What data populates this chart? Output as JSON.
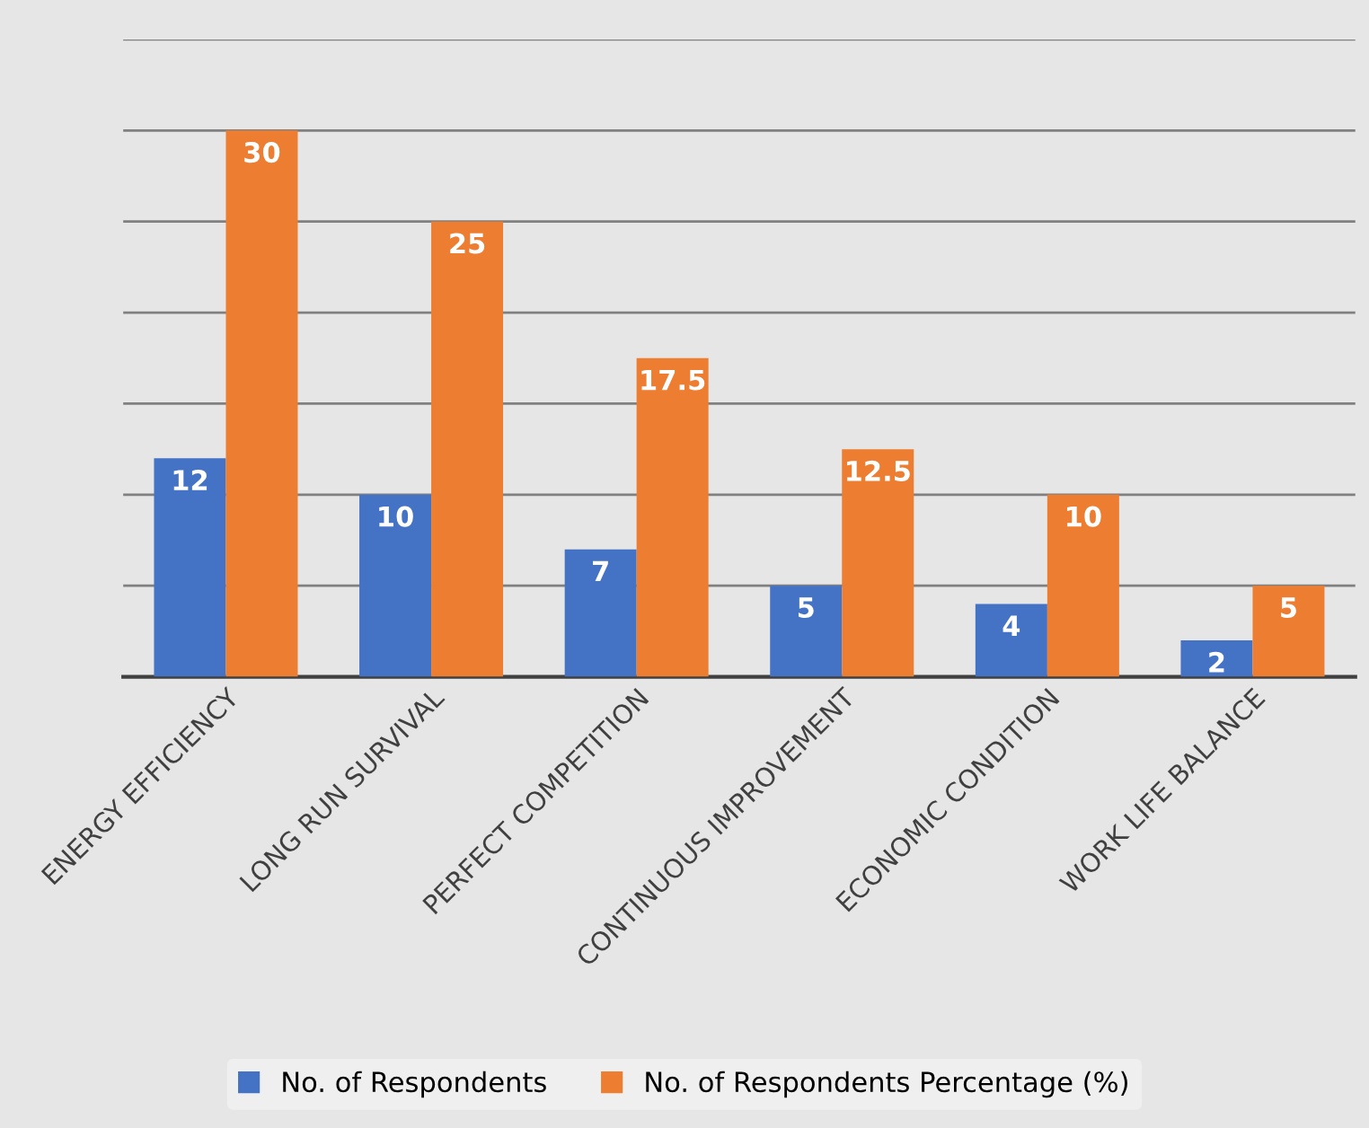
{
  "chart_data": {
    "type": "bar",
    "categories": [
      "ENERGY EFFICIENCY",
      "LONG RUN SURVIVAL",
      "PERFECT COMPETITION",
      "CONTINUOUS IMPROVEMENT",
      "ECONOMIC CONDITION",
      "WORK LIFE BALANCE"
    ],
    "series": [
      {
        "name": "No. of Respondents",
        "color": "#4472c4",
        "values": [
          12,
          10,
          7,
          5,
          4,
          2
        ]
      },
      {
        "name": "No. of Respondents Percentage (%)",
        "color": "#ed7d31",
        "values": [
          30,
          25,
          17.5,
          12.5,
          10,
          5
        ]
      }
    ],
    "ylim": [
      0,
      35
    ],
    "yticks": [
      {
        "value": 0,
        "label": null
      },
      {
        "value": 5,
        "label": null
      },
      {
        "value": 10,
        "label": null
      },
      {
        "value": 15,
        "label": null
      },
      {
        "value": 20,
        "label": null
      },
      {
        "value": 25,
        "label": null
      },
      {
        "value": 30,
        "label": null
      },
      {
        "value": 35,
        "label": null
      }
    ],
    "tick_labels": "x",
    "grid": "y",
    "data_labels": true,
    "legend": "bottom"
  }
}
